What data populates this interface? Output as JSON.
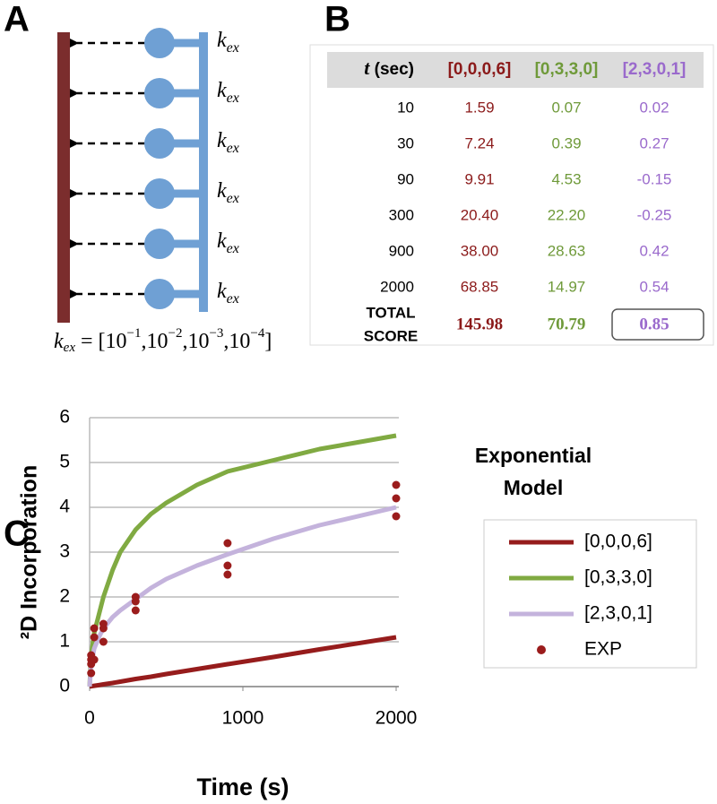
{
  "panel_a": {
    "label": "A",
    "rate_labels": [
      {
        "base": "k",
        "sub": "ex"
      },
      {
        "base": "k",
        "sub": "ex"
      },
      {
        "base": "k",
        "sub": "ex"
      },
      {
        "base": "k",
        "sub": "ex"
      },
      {
        "base": "k",
        "sub": "ex"
      },
      {
        "base": "k",
        "sub": "ex"
      }
    ],
    "formula": [
      {
        "text": "k"
      },
      {
        "text": "ex",
        "sub": true
      },
      {
        "text": " = [10"
      },
      {
        "text": "−1",
        "sup": true
      },
      {
        "text": ",10"
      },
      {
        "text": "−2",
        "sup": true
      },
      {
        "text": ",10"
      },
      {
        "text": "−3",
        "sup": true
      },
      {
        "text": ",10"
      },
      {
        "text": "−4",
        "sup": true
      },
      {
        "text": "]"
      }
    ]
  },
  "panel_b": {
    "label": "B",
    "header": {
      "var": "t",
      "unit": "(sec)",
      "models": [
        "[0,0,0,6]",
        "[0,3,3,0]",
        "[2,3,0,1]"
      ]
    },
    "colors": [
      "#8b1a1a",
      "#6f9a3a",
      "#9a6acc"
    ],
    "rows": [
      [
        "10",
        "1.59",
        "0.07",
        "0.02"
      ],
      [
        "30",
        "7.24",
        "0.39",
        "0.27"
      ],
      [
        "90",
        "9.91",
        "4.53",
        "-0.15"
      ],
      [
        "300",
        "20.40",
        "22.20",
        "-0.25"
      ],
      [
        "900",
        "38.00",
        "28.63",
        "0.42"
      ],
      [
        "2000",
        "68.85",
        "14.97",
        "0.54"
      ]
    ],
    "total": {
      "label": [
        "TOTAL",
        "SCORE"
      ],
      "scores": [
        "145.98",
        "70.79",
        "0.85"
      ],
      "highlight": 2
    }
  },
  "chart_data": {
    "type": "line",
    "panel_label": "C",
    "xlabel": "Time (s)",
    "ylabel": "²D Incorporation",
    "legend_title": [
      "Exponential",
      "Model"
    ],
    "xlim": [
      0,
      2000
    ],
    "ylim": [
      0,
      6
    ],
    "xticks": [
      0,
      1000,
      2000
    ],
    "yticks": [
      0,
      1,
      2,
      3,
      4,
      5,
      6
    ],
    "grid": true,
    "series": [
      {
        "name": "[0,0,0,6]",
        "color": "#961c1c",
        "x": [
          0,
          10,
          30,
          60,
          90,
          150,
          200,
          300,
          400,
          500,
          700,
          900,
          1200,
          1500,
          2000
        ],
        "values": [
          0,
          0.006,
          0.017,
          0.033,
          0.05,
          0.08,
          0.11,
          0.17,
          0.22,
          0.28,
          0.39,
          0.5,
          0.66,
          0.83,
          1.1
        ]
      },
      {
        "name": "[0,3,3,0]",
        "color": "#80aa42",
        "x": [
          0,
          10,
          30,
          60,
          90,
          150,
          200,
          300,
          400,
          500,
          700,
          900,
          1200,
          1500,
          2000
        ],
        "values": [
          0,
          0.7,
          1.2,
          1.6,
          2.0,
          2.6,
          3.0,
          3.5,
          3.85,
          4.1,
          4.5,
          4.8,
          5.05,
          5.3,
          5.6
        ]
      },
      {
        "name": "[2,3,0,1]",
        "color": "#c4b3dc",
        "x": [
          0,
          10,
          30,
          60,
          90,
          150,
          200,
          300,
          400,
          500,
          700,
          900,
          1200,
          1500,
          2000
        ],
        "values": [
          0,
          0.5,
          0.85,
          1.1,
          1.3,
          1.55,
          1.7,
          1.95,
          2.2,
          2.4,
          2.7,
          2.95,
          3.3,
          3.6,
          4.0
        ]
      },
      {
        "name": "EXP",
        "color": "#9b1c1c",
        "marker": "dot",
        "x": [
          10,
          10,
          10,
          10,
          30,
          30,
          30,
          90,
          90,
          90,
          300,
          300,
          300,
          900,
          900,
          900,
          2000,
          2000,
          2000
        ],
        "values": [
          0.3,
          0.5,
          0.6,
          0.7,
          0.6,
          1.1,
          1.3,
          1.0,
          1.3,
          1.4,
          1.7,
          1.9,
          2.0,
          2.5,
          2.7,
          3.2,
          3.8,
          4.2,
          4.5
        ]
      }
    ]
  }
}
